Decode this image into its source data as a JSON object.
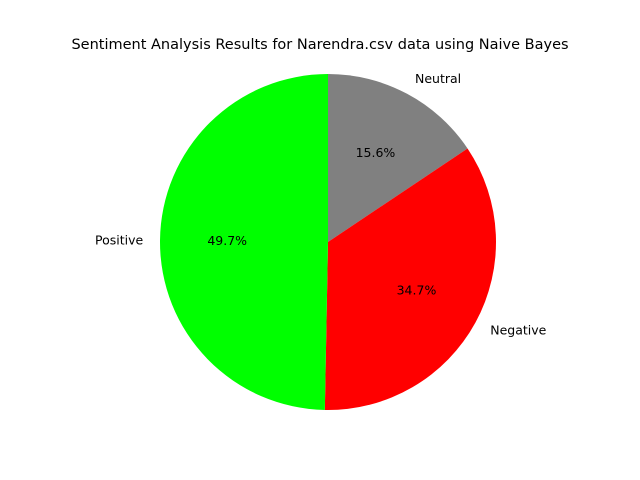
{
  "chart_data": {
    "type": "pie",
    "title": "Sentiment Analysis Results for Narendra.csv data using Naive Bayes",
    "slices": [
      {
        "label": "Neutral",
        "value": 15.6,
        "pct_label": "15.6%",
        "color": "#808080"
      },
      {
        "label": "Negative",
        "value": 34.7,
        "pct_label": "34.7%",
        "color": "#ff0000"
      },
      {
        "label": "Positive",
        "value": 49.7,
        "pct_label": "49.7%",
        "color": "#00ff00"
      }
    ],
    "start_angle_deg": 90,
    "direction": "clockwise"
  }
}
